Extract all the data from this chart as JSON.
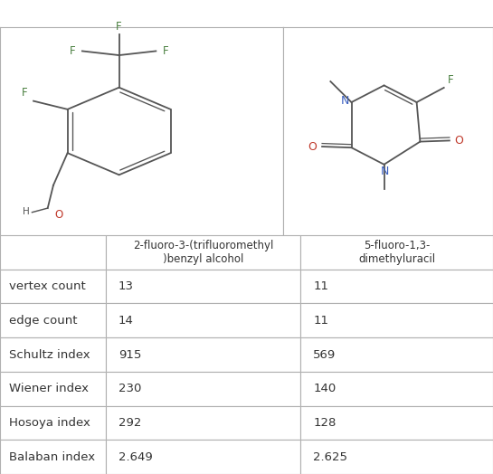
{
  "title1": "2-fluoro-3-(trifluoromethyl)benzyl alcohol",
  "title2": "5-fluoro-1,3-dimethyluracil",
  "col_header1": "2-fluoro-3-(trifluoromethyl\n)benzyl alcohol",
  "col_header2": "5-fluoro-1,3-\ndimethyluracil",
  "row_labels": [
    "vertex count",
    "edge count",
    "Schultz index",
    "Wiener index",
    "Hosoya index",
    "Balaban index"
  ],
  "values1": [
    "13",
    "14",
    "915",
    "230",
    "292",
    "2.649"
  ],
  "values2": [
    "11",
    "11",
    "569",
    "140",
    "128",
    "2.625"
  ],
  "border_color": "#b0b0b0",
  "text_color": "#333333",
  "background_color": "#ffffff",
  "green": "#4a8040",
  "red": "#c0392b",
  "blue": "#3a5fc0",
  "gray": "#555555",
  "font_size_title": 10.0,
  "font_size_table_header": 8.5,
  "font_size_table_data": 9.5,
  "font_size_mol": 8.5
}
